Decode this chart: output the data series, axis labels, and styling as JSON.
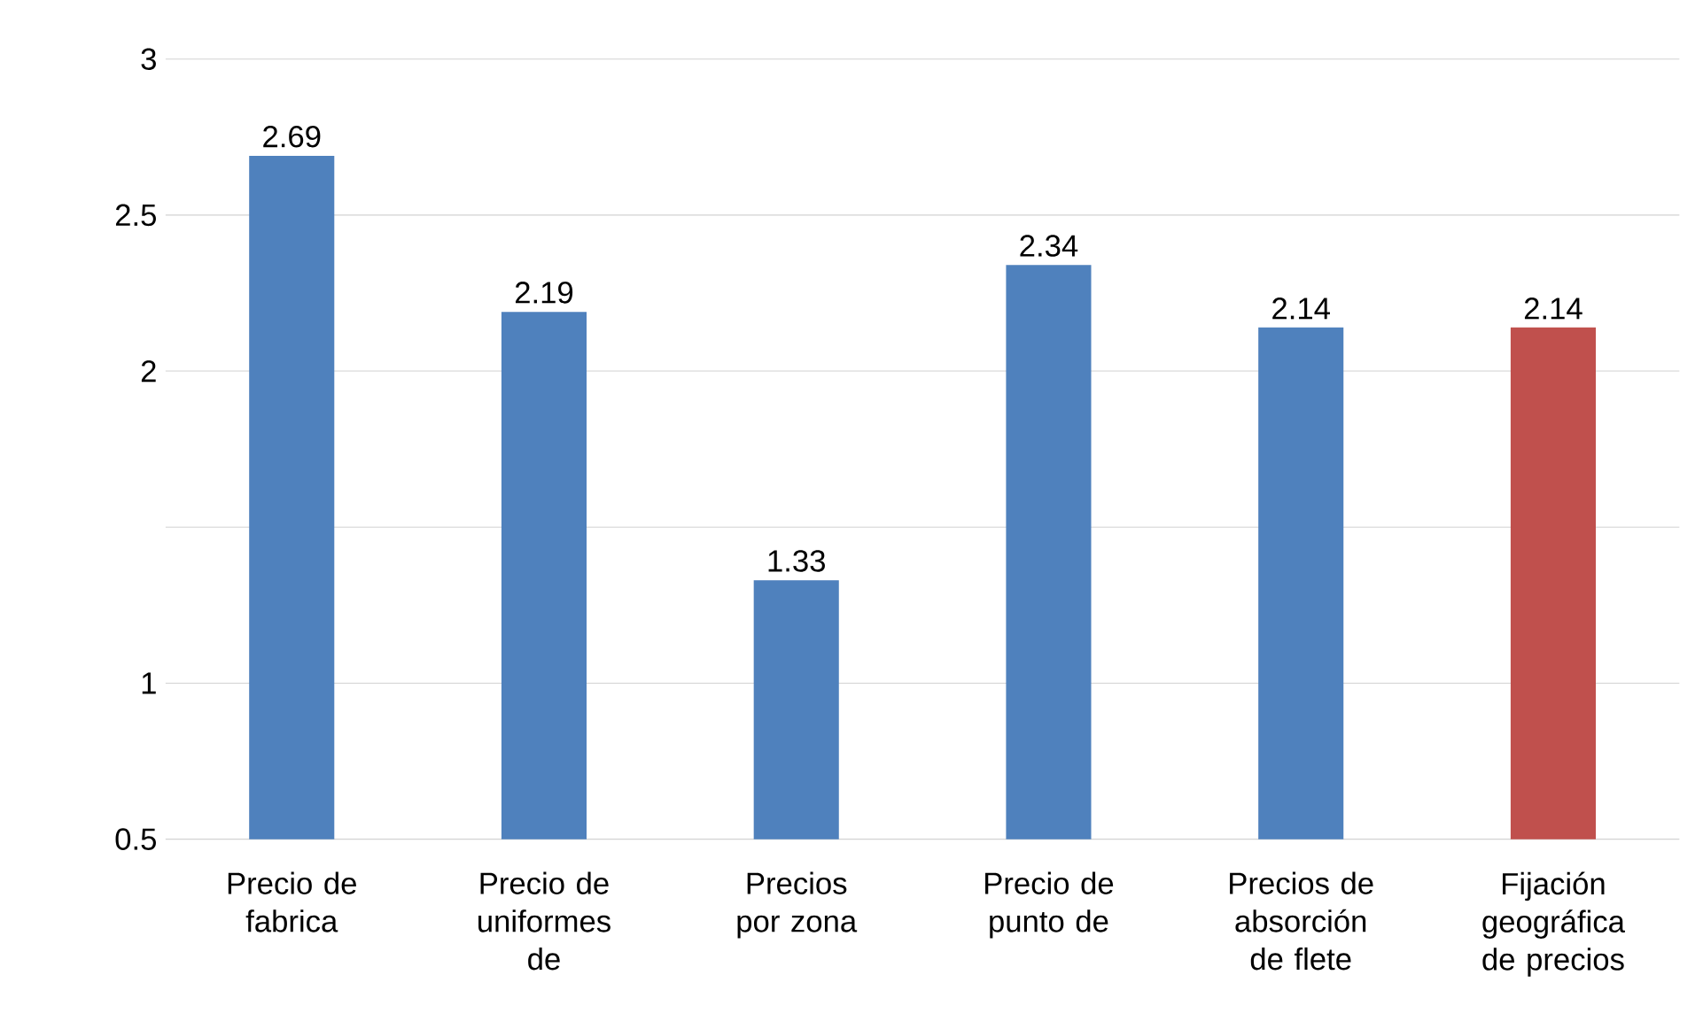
{
  "chart_data": {
    "type": "bar",
    "categories": [
      "Precio de fabrica",
      "Precio de uniformes de",
      "Precios por zona",
      "Precio de punto de",
      "Precios de absorción de flete",
      "Fijación geográfica de precios"
    ],
    "values": [
      2.69,
      2.19,
      1.33,
      2.34,
      2.14,
      2.14
    ],
    "colors": [
      "#4f81bd",
      "#4f81bd",
      "#4f81bd",
      "#4f81bd",
      "#4f81bd",
      "#c0504d"
    ],
    "ylim": [
      0.5,
      3
    ],
    "yticks": [
      0.5,
      1,
      {
        "value": 1.5,
        "label": null
      },
      2,
      2.5,
      3
    ],
    "grid": "y",
    "data_labels": true
  }
}
